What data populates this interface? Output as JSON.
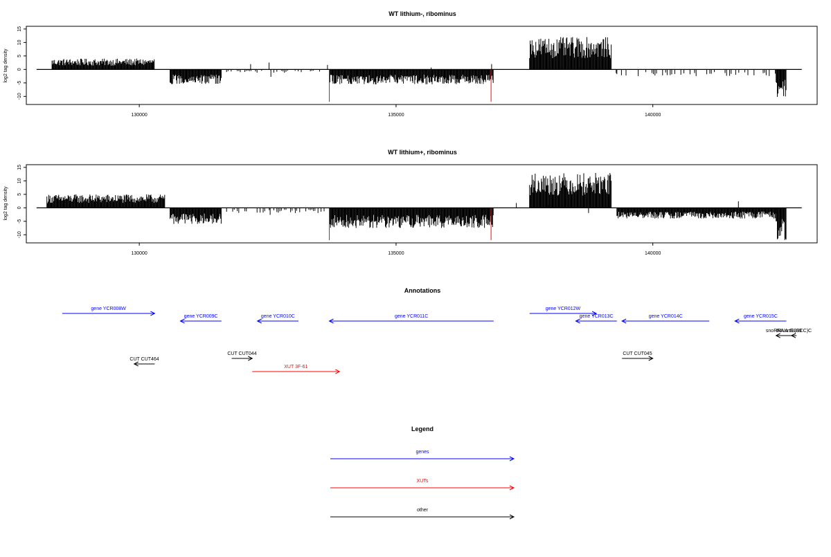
{
  "colors": {
    "genes": "#0000ff",
    "xuts": "#ff0000",
    "other": "#000000",
    "bars": "#000000",
    "spike": "#ff0000"
  },
  "chart_data": [
    {
      "type": "bar",
      "title": "WT lithium-, ribominus",
      "ylabel": "log2 tag density",
      "xlim": [
        127800,
        143200
      ],
      "ylim": [
        -13,
        16
      ],
      "xticks": [
        130000,
        135000,
        140000
      ],
      "xtick_labels": [
        "130000",
        "135000",
        "140000"
      ],
      "yticks": [
        15,
        10,
        5,
        0,
        -5,
        -10
      ],
      "ytick_labels": [
        "15",
        "10",
        "5",
        "0",
        "-5",
        "-10"
      ],
      "segments": [
        {
          "start": 128300,
          "end": 130300,
          "strand": "+",
          "amplitude": 4
        },
        {
          "start": 130600,
          "end": 131600,
          "strand": "-",
          "amplitude": 5.5
        },
        {
          "start": 131700,
          "end": 133600,
          "strand": "-",
          "amplitude": 1.2,
          "sparse": true
        },
        {
          "start": 133700,
          "end": 136900,
          "strand": "-",
          "amplitude": 5.5
        },
        {
          "start": 137600,
          "end": 139200,
          "strand": "+",
          "amplitude": 12
        },
        {
          "start": 139300,
          "end": 142400,
          "strand": "-",
          "amplitude": 2.5,
          "sparse": true
        },
        {
          "start": 142400,
          "end": 142600,
          "strand": "-",
          "amplitude": 11
        }
      ],
      "spikes": [
        {
          "x": 133700,
          "value": -12
        },
        {
          "x": 136850,
          "value": -12
        }
      ]
    },
    {
      "type": "bar",
      "title": "WT lithium+, ribominus",
      "ylabel": "log2 tag density",
      "xlim": [
        127800,
        143200
      ],
      "ylim": [
        -13,
        16
      ],
      "xticks": [
        130000,
        135000,
        140000
      ],
      "xtick_labels": [
        "130000",
        "135000",
        "140000"
      ],
      "yticks": [
        15,
        10,
        5,
        0,
        -5,
        -10
      ],
      "ytick_labels": [
        "15",
        "10",
        "5",
        "0",
        "-5",
        "-10"
      ],
      "segments": [
        {
          "start": 128200,
          "end": 130500,
          "strand": "+",
          "amplitude": 5
        },
        {
          "start": 130600,
          "end": 131600,
          "strand": "-",
          "amplitude": 6
        },
        {
          "start": 131700,
          "end": 133600,
          "strand": "-",
          "amplitude": 2,
          "sparse": true
        },
        {
          "start": 133700,
          "end": 136900,
          "strand": "-",
          "amplitude": 7.5
        },
        {
          "start": 137600,
          "end": 139200,
          "strand": "+",
          "amplitude": 13
        },
        {
          "start": 139300,
          "end": 142400,
          "strand": "-",
          "amplitude": 4
        },
        {
          "start": 142400,
          "end": 142600,
          "strand": "-",
          "amplitude": 12
        }
      ],
      "spikes": [
        {
          "x": 133700,
          "value": -12
        },
        {
          "x": 136850,
          "value": -12
        }
      ]
    }
  ],
  "annotations": {
    "title": "Annotations",
    "items": [
      {
        "label": "gene YCR008W",
        "start": 128500,
        "end": 130300,
        "strand": "+",
        "category": "genes",
        "row": 1
      },
      {
        "label": "gene YCR009C",
        "start": 130800,
        "end": 131600,
        "strand": "-",
        "category": "genes",
        "row": 2
      },
      {
        "label": "gene YCR010C",
        "start": 132300,
        "end": 133100,
        "strand": "-",
        "category": "genes",
        "row": 2
      },
      {
        "label": "gene YCR011C",
        "start": 133700,
        "end": 136900,
        "strand": "-",
        "category": "genes",
        "row": 3
      },
      {
        "label": "gene YCR012W",
        "start": 137600,
        "end": 138900,
        "strand": "+",
        "category": "genes",
        "row": 1
      },
      {
        "label": "gene YCR013C",
        "start": 138500,
        "end": 139300,
        "strand": "-",
        "category": "genes",
        "row": 2
      },
      {
        "label": "gene YCR014C",
        "start": 139400,
        "end": 141100,
        "strand": "-",
        "category": "genes",
        "row": 3
      },
      {
        "label": "gene YCR015C",
        "start": 141600,
        "end": 142600,
        "strand": "-",
        "category": "genes",
        "row": 3
      },
      {
        "label": "snoRNA snR189",
        "start": 142400,
        "end": 142700,
        "strand": "-",
        "category": "other",
        "row": 4
      },
      {
        "label": "tRNA tG(GCC)C",
        "start": 142700,
        "end": 142800,
        "strand": "-",
        "category": "other",
        "row": 4
      },
      {
        "label": "CUT CUT464",
        "start": 129900,
        "end": 130300,
        "strand": "-",
        "category": "other",
        "row": 6
      },
      {
        "label": "CUT CUT044",
        "start": 131800,
        "end": 132200,
        "strand": "+",
        "category": "other",
        "row": 5
      },
      {
        "label": "XUT 3F-61",
        "start": 132200,
        "end": 133900,
        "strand": "+",
        "category": "xuts",
        "row": 7
      },
      {
        "label": "CUT CUT045",
        "start": 139400,
        "end": 140000,
        "strand": "+",
        "category": "other",
        "row": 5
      }
    ]
  },
  "legend": {
    "title": "Legend",
    "items": [
      {
        "label": "genes",
        "category": "genes"
      },
      {
        "label": "XUTs",
        "category": "xuts"
      },
      {
        "label": "other",
        "category": "other"
      }
    ]
  }
}
